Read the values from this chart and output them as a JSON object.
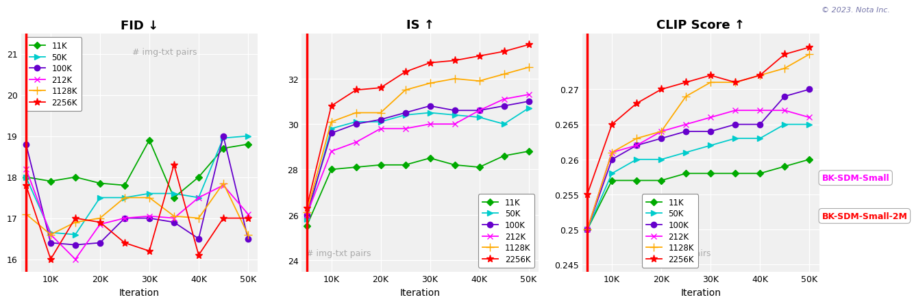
{
  "iterations": [
    5000,
    10000,
    15000,
    20000,
    25000,
    30000,
    35000,
    40000,
    45000,
    50000
  ],
  "colors": {
    "11K": "#00aa00",
    "50K": "#00cccc",
    "100K": "#6600cc",
    "212K": "#ff00ff",
    "1128K": "#ffaa00",
    "2256K": "#ff0000"
  },
  "markers": {
    "11K": "D",
    "50K": ">",
    "100K": "o",
    "212K": "x",
    "1128K": "+",
    "2256K": "*"
  },
  "fid": {
    "11K": [
      18.0,
      17.9,
      18.0,
      17.85,
      17.8,
      18.9,
      17.5,
      18.0,
      18.7,
      18.8
    ],
    "50K": [
      18.0,
      16.65,
      16.6,
      17.5,
      17.5,
      17.6,
      17.6,
      17.5,
      18.95,
      19.0
    ],
    "100K": [
      18.8,
      16.4,
      16.35,
      16.4,
      17.0,
      17.0,
      16.9,
      16.5,
      19.0,
      16.5
    ],
    "212K": [
      18.2,
      16.6,
      16.0,
      16.85,
      17.0,
      17.05,
      17.0,
      17.5,
      17.8,
      17.1
    ],
    "1128K": [
      17.1,
      16.6,
      16.9,
      17.0,
      17.5,
      17.5,
      17.05,
      17.0,
      17.85,
      16.6
    ],
    "2256K": [
      17.8,
      16.0,
      17.0,
      16.9,
      16.4,
      16.2,
      18.3,
      16.1,
      17.0,
      17.0
    ]
  },
  "IS": {
    "11K": [
      25.5,
      28.0,
      28.1,
      28.2,
      28.2,
      28.5,
      28.2,
      28.1,
      28.6,
      28.8
    ],
    "50K": [
      25.8,
      29.8,
      30.1,
      30.1,
      30.4,
      30.5,
      30.4,
      30.3,
      30.0,
      30.7
    ],
    "100K": [
      26.0,
      29.6,
      30.0,
      30.2,
      30.5,
      30.8,
      30.6,
      30.6,
      30.8,
      31.0
    ],
    "212K": [
      26.0,
      28.8,
      29.2,
      29.8,
      29.8,
      30.0,
      30.0,
      30.6,
      31.1,
      31.3
    ],
    "1128K": [
      26.1,
      30.1,
      30.5,
      30.5,
      31.5,
      31.8,
      32.0,
      31.9,
      32.2,
      32.5
    ],
    "2256K": [
      26.3,
      30.8,
      31.5,
      31.6,
      32.3,
      32.7,
      32.8,
      33.0,
      33.2,
      33.5
    ]
  },
  "clip": {
    "11K": [
      0.25,
      0.257,
      0.257,
      0.257,
      0.258,
      0.258,
      0.258,
      0.258,
      0.259,
      0.26
    ],
    "50K": [
      0.25,
      0.258,
      0.26,
      0.26,
      0.261,
      0.262,
      0.263,
      0.263,
      0.265,
      0.265
    ],
    "100K": [
      0.25,
      0.26,
      0.262,
      0.263,
      0.264,
      0.264,
      0.265,
      0.265,
      0.269,
      0.27
    ],
    "212K": [
      0.25,
      0.261,
      0.262,
      0.264,
      0.265,
      0.266,
      0.267,
      0.267,
      0.267,
      0.266
    ],
    "1128K": [
      0.25,
      0.261,
      0.263,
      0.264,
      0.269,
      0.271,
      0.271,
      0.272,
      0.273,
      0.275
    ],
    "2256K": [
      0.255,
      0.265,
      0.268,
      0.27,
      0.271,
      0.272,
      0.271,
      0.272,
      0.275,
      0.276
    ]
  },
  "series_order": [
    "11K",
    "50K",
    "100K",
    "212K",
    "1128K",
    "2256K"
  ],
  "fid_ylim": [
    15.7,
    21.5
  ],
  "fid_yticks": [
    16,
    17,
    18,
    19,
    20,
    21
  ],
  "IS_ylim": [
    23.5,
    34.0
  ],
  "IS_yticks": [
    24,
    26,
    28,
    30,
    32
  ],
  "clip_ylim": [
    0.244,
    0.278
  ],
  "clip_yticks": [
    0.245,
    0.25,
    0.255,
    0.26,
    0.265,
    0.27
  ],
  "copyright_text": "© 2023. Nota Inc.",
  "watermark": "# img-txt pairs",
  "bk_small_label": "BK-SDM-Small",
  "bk_small2m_label": "BK-SDM-Small-2M",
  "bk_small_color": "#ff00ff",
  "bk_small2m_color": "#ff0000"
}
